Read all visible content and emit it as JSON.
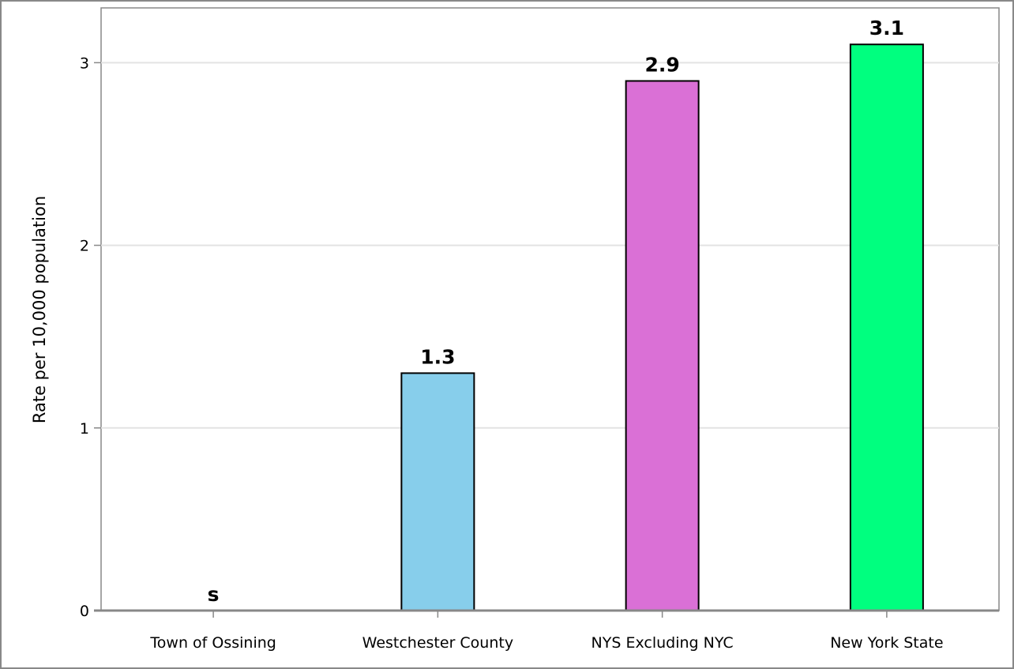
{
  "chart_data": {
    "type": "bar",
    "categories": [
      "Town of Ossining",
      "Westchester County",
      "NYS Excluding NYC",
      "New York State"
    ],
    "values": [
      null,
      1.3,
      2.9,
      3.1
    ],
    "data_labels": [
      "s",
      "1.3",
      "2.9",
      "3.1"
    ],
    "colors": [
      "#87CEEB",
      "#87CEEB",
      "#DA70D6",
      "#00FF7F"
    ],
    "ylabel": "Rate per 10,000 population",
    "ylim": [
      0,
      3.3
    ],
    "yticks": [
      0,
      1,
      2,
      3
    ],
    "ytick_labels": [
      "0",
      "1",
      "2",
      "3"
    ],
    "grid": true
  }
}
